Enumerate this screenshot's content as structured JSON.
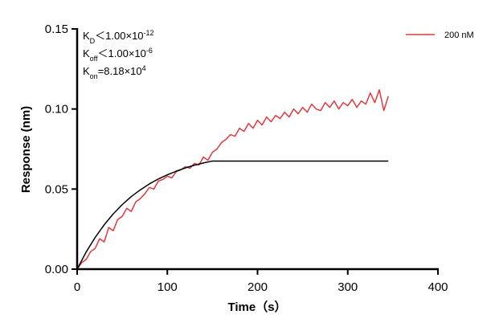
{
  "chart_data": {
    "type": "line",
    "xlabel": "Time（s）",
    "ylabel": "Response (nm)",
    "xlim": [
      0,
      400
    ],
    "xticks": [
      0,
      100,
      200,
      300,
      400
    ],
    "ylim": [
      0,
      0.15
    ],
    "yticks": [
      {
        "value": 0,
        "label": "0.00"
      },
      {
        "value": 0.05,
        "label": "0.05"
      },
      {
        "value": 0.1,
        "label": "0.10"
      },
      {
        "value": 0.15,
        "label": "0.15"
      }
    ],
    "legend": "upper right",
    "annotations": [
      {
        "symbol": "K",
        "sub": "D",
        "text": "＜1.00×10",
        "sup": "-12"
      },
      {
        "symbol": "K",
        "sub": "off",
        "text": "＜1.00×10",
        "sup": "-6"
      },
      {
        "symbol": "K",
        "sub": "on",
        "text": "=8.18×10",
        "sup": "4"
      }
    ],
    "series": [
      {
        "name": "200 nM",
        "color": "#e0393e",
        "x": [
          0,
          5,
          10,
          15,
          20,
          25,
          30,
          35,
          40,
          45,
          50,
          55,
          60,
          65,
          70,
          75,
          80,
          85,
          90,
          95,
          100,
          105,
          110,
          115,
          120,
          125,
          130,
          135,
          140,
          145,
          150,
          155,
          160,
          165,
          170,
          175,
          180,
          185,
          190,
          195,
          200,
          205,
          210,
          215,
          220,
          225,
          230,
          235,
          240,
          245,
          250,
          255,
          260,
          265,
          270,
          275,
          280,
          285,
          290,
          295,
          300,
          305,
          310,
          315,
          320,
          325,
          330,
          335,
          340,
          345
        ],
        "values": [
          0.0,
          0.004,
          0.006,
          0.011,
          0.013,
          0.019,
          0.017,
          0.026,
          0.024,
          0.031,
          0.033,
          0.038,
          0.036,
          0.042,
          0.044,
          0.047,
          0.051,
          0.05,
          0.055,
          0.056,
          0.058,
          0.057,
          0.061,
          0.062,
          0.064,
          0.063,
          0.066,
          0.065,
          0.07,
          0.068,
          0.073,
          0.075,
          0.079,
          0.081,
          0.084,
          0.083,
          0.088,
          0.086,
          0.091,
          0.088,
          0.093,
          0.09,
          0.095,
          0.092,
          0.096,
          0.094,
          0.098,
          0.095,
          0.1,
          0.097,
          0.101,
          0.098,
          0.103,
          0.1,
          0.099,
          0.104,
          0.101,
          0.105,
          0.1,
          0.104,
          0.102,
          0.106,
          0.101,
          0.105,
          0.103,
          0.11,
          0.104,
          0.112,
          0.099,
          0.108
        ]
      },
      {
        "color": "#000000",
        "x": [
          0,
          10,
          20,
          30,
          40,
          50,
          60,
          70,
          80,
          90,
          100,
          110,
          120,
          130,
          140,
          150,
          345
        ],
        "values": [
          0,
          0.0107,
          0.0198,
          0.0277,
          0.0345,
          0.0403,
          0.0453,
          0.0495,
          0.0532,
          0.0563,
          0.0589,
          0.0612,
          0.0632,
          0.0649,
          0.0663,
          0.0675,
          0.0675
        ]
      }
    ]
  }
}
